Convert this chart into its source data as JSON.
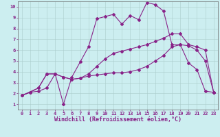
{
  "xlabel": "Windchill (Refroidissement éolien,°C)",
  "bg_color": "#cceef0",
  "line_color": "#882288",
  "grid_color": "#aacccc",
  "xlim": [
    -0.5,
    23.5
  ],
  "ylim": [
    0.5,
    10.5
  ],
  "xticks": [
    0,
    1,
    2,
    3,
    4,
    5,
    6,
    7,
    8,
    9,
    10,
    11,
    12,
    13,
    14,
    15,
    16,
    17,
    18,
    19,
    20,
    21,
    22,
    23
  ],
  "yticks": [
    1,
    2,
    3,
    4,
    5,
    6,
    7,
    8,
    9,
    10
  ],
  "line1_x": [
    0,
    1,
    2,
    3,
    4,
    5,
    6,
    7,
    8,
    9,
    10,
    11,
    12,
    13,
    14,
    15,
    16,
    17,
    18,
    19,
    20,
    21,
    22,
    23
  ],
  "line1_y": [
    1.8,
    2.1,
    2.5,
    3.8,
    3.8,
    3.5,
    3.3,
    3.4,
    3.6,
    3.7,
    3.8,
    3.9,
    3.9,
    4.0,
    4.2,
    4.5,
    5.0,
    5.5,
    6.3,
    6.5,
    6.4,
    6.0,
    5.0,
    2.1
  ],
  "line2_x": [
    0,
    2,
    3,
    4,
    5,
    6,
    7,
    8,
    9,
    10,
    11,
    12,
    13,
    14,
    15,
    16,
    17,
    18,
    19,
    20,
    21,
    22,
    23
  ],
  "line2_y": [
    1.8,
    2.5,
    3.8,
    3.8,
    3.5,
    3.3,
    3.4,
    3.8,
    4.5,
    5.2,
    5.7,
    5.9,
    6.1,
    6.3,
    6.5,
    6.8,
    7.1,
    7.5,
    7.5,
    6.5,
    6.3,
    6.0,
    2.1
  ],
  "line3_x": [
    0,
    1,
    2,
    3,
    4,
    5,
    6,
    7,
    8,
    9,
    10,
    11,
    12,
    13,
    14,
    15,
    16,
    17,
    18,
    19,
    20,
    21,
    22,
    23
  ],
  "line3_y": [
    1.8,
    2.1,
    2.2,
    2.5,
    3.8,
    1.0,
    3.5,
    4.9,
    6.3,
    8.9,
    9.1,
    9.3,
    8.4,
    9.2,
    8.8,
    10.4,
    10.2,
    9.6,
    6.5,
    6.5,
    4.8,
    4.2,
    2.2,
    2.1
  ],
  "font_family": "monospace",
  "tick_fontsize": 5.0,
  "xlabel_fontsize": 6.0
}
